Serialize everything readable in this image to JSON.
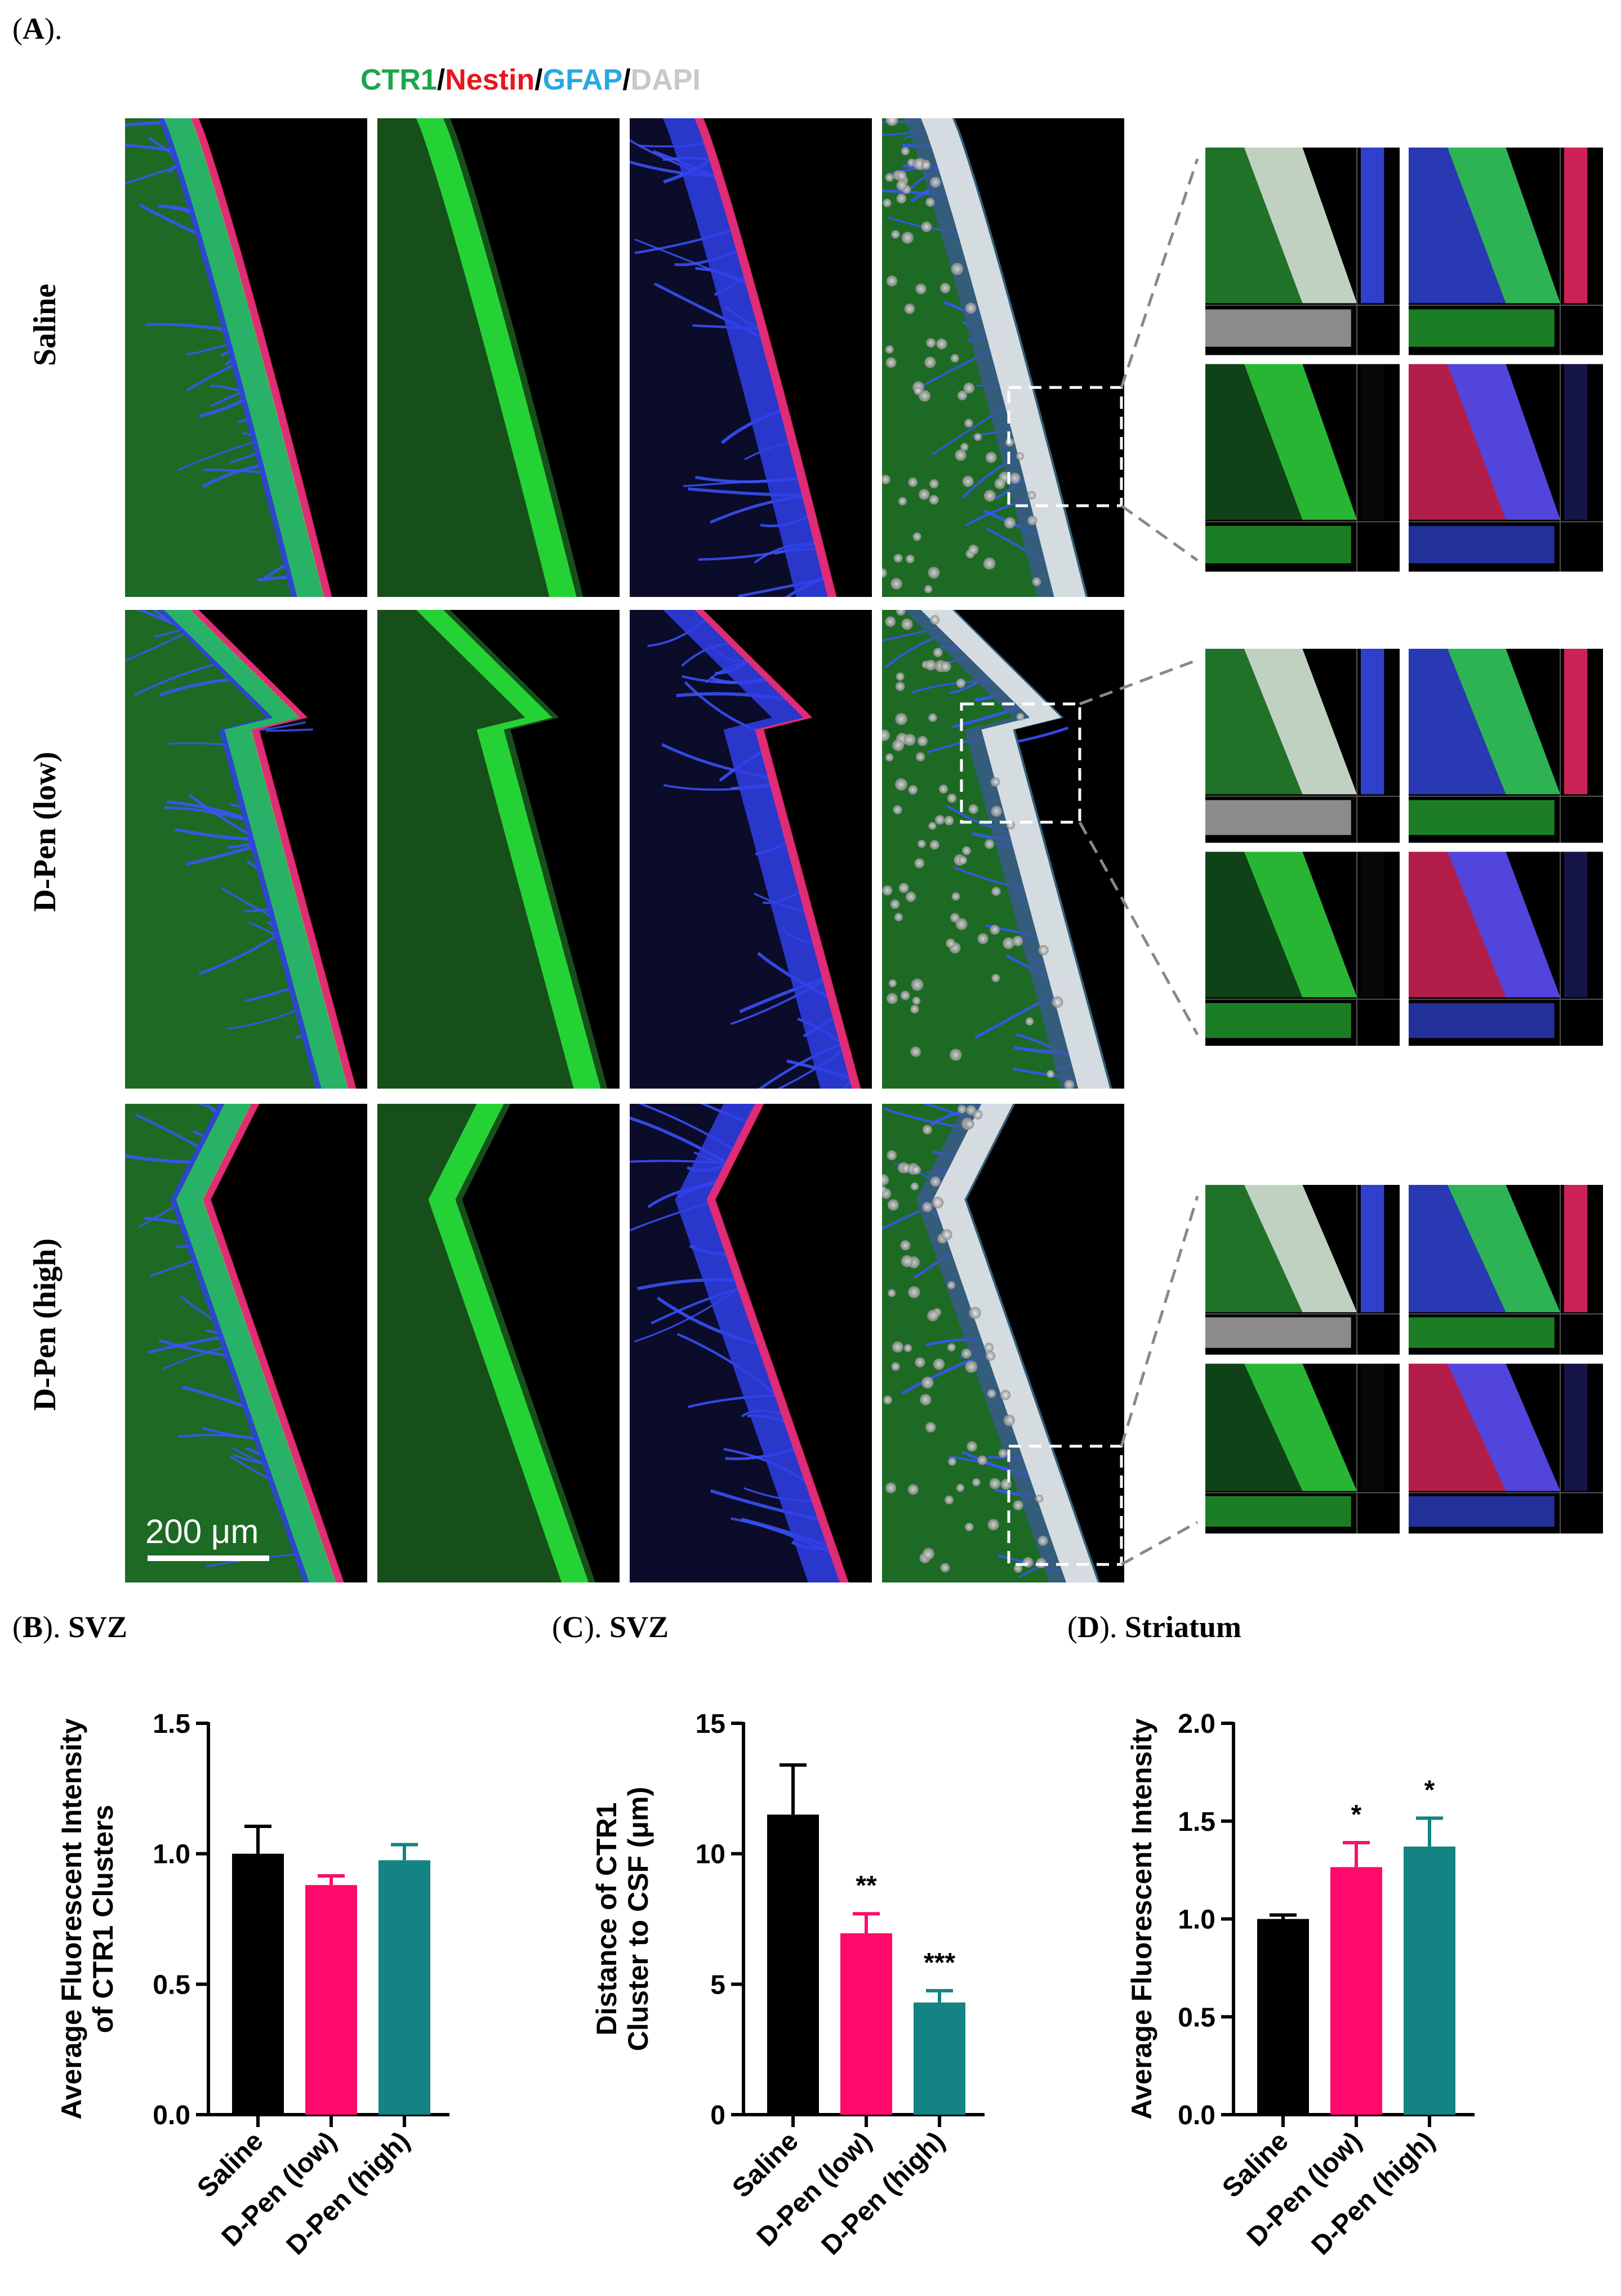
{
  "figure": {
    "panel_a_label": "A",
    "panel_b_label": "B",
    "panel_b_region": "SVZ",
    "panel_c_label": "C",
    "panel_c_region": "SVZ",
    "panel_d_label": "D",
    "panel_d_region": "Striatum"
  },
  "stain_legend": [
    {
      "text": "CTR1",
      "color": "#1aa64a"
    },
    {
      "text": "/",
      "color": "#000000"
    },
    {
      "text": "Nestin",
      "color": "#e8161b"
    },
    {
      "text": "/",
      "color": "#000000"
    },
    {
      "text": "GFAP",
      "color": "#27a9e1"
    },
    {
      "text": "/",
      "color": "#000000"
    },
    {
      "text": "DAPI",
      "color": "#c8c8c8"
    }
  ],
  "rows": [
    "Saline",
    "D-Pen (low)",
    "D-Pen (high)"
  ],
  "scale_bar": "200 μm",
  "colors": {
    "saline": "#000000",
    "dpen_low": "#ff0a6c",
    "dpen_high": "#138383",
    "ctr1": "#1aa64a",
    "gfap": "#2f3dff",
    "nestin": "#ff2a6a",
    "dapi": "#e6e6e6"
  },
  "chart_data": [
    {
      "type": "bar",
      "categories": [
        "Saline",
        "D-Pen (low)",
        "D-Pen (high)"
      ],
      "values": [
        1.0,
        0.88,
        0.975
      ],
      "errors": [
        0.105,
        0.035,
        0.06
      ],
      "significance": [
        "",
        "",
        ""
      ],
      "ylabel_lines": [
        "Average Fluorescent Intensity",
        "of CTR1 Clusters"
      ],
      "ylim": [
        0,
        1.5
      ],
      "ticks": [
        0.0,
        0.5,
        1.0,
        1.5
      ],
      "tick_labels": [
        "0.0",
        "0.5",
        "1.0",
        "1.5"
      ]
    },
    {
      "type": "bar",
      "categories": [
        "Saline",
        "D-Pen (low)",
        "D-Pen (high)"
      ],
      "values": [
        11.5,
        6.95,
        4.3
      ],
      "errors": [
        1.9,
        0.75,
        0.45
      ],
      "significance": [
        "",
        "**",
        "***"
      ],
      "ylabel_lines": [
        "Distance of CTR1",
        "Cluster to CSF (μm)"
      ],
      "ylim": [
        0,
        15
      ],
      "ticks": [
        0,
        5,
        10,
        15
      ],
      "tick_labels": [
        "0",
        "5",
        "10",
        "15"
      ]
    },
    {
      "type": "bar",
      "categories": [
        "Saline",
        "D-Pen (low)",
        "D-Pen (high)"
      ],
      "values": [
        1.0,
        1.265,
        1.37
      ],
      "errors": [
        0.02,
        0.125,
        0.145
      ],
      "significance": [
        "",
        "*",
        "*"
      ],
      "ylabel_lines": [
        "Average Fluorescent Intensity"
      ],
      "ylim": [
        0,
        2.0
      ],
      "ticks": [
        0.0,
        0.5,
        1.0,
        1.5,
        2.0
      ],
      "tick_labels": [
        "0.0",
        "0.5",
        "1.0",
        "1.5",
        "2.0"
      ]
    }
  ]
}
